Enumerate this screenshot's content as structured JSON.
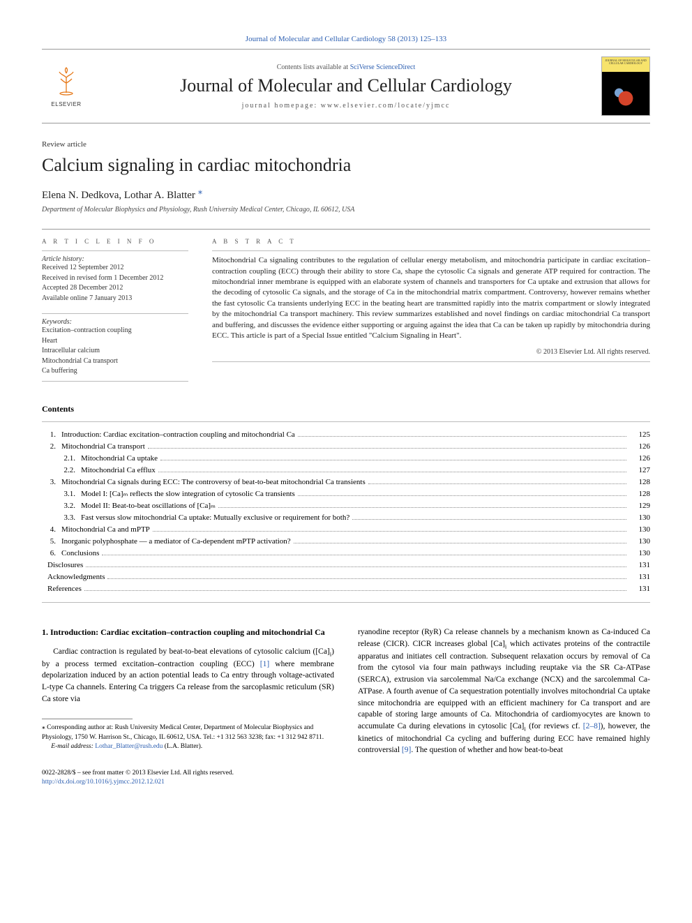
{
  "header": {
    "top_link_text": "Journal of Molecular and Cellular Cardiology 58 (2013) 125–133",
    "contents_prefix": "Contents lists available at ",
    "contents_service": "SciVerse ScienceDirect",
    "journal_name": "Journal of Molecular and Cellular Cardiology",
    "homepage_prefix": "journal homepage: ",
    "homepage_url": "www.elsevier.com/locate/yjmcc",
    "publisher": "ELSEVIER",
    "cover_label": "JOURNAL OF MOLECULAR AND CELLULAR CARDIOLOGY"
  },
  "article": {
    "type": "Review article",
    "title": "Calcium signaling in cardiac mitochondria",
    "authors": "Elena N. Dedkova, Lothar A. Blatter ",
    "corr_mark": "⁎",
    "affiliation": "Department of Molecular Biophysics and Physiology, Rush University Medical Center, Chicago, IL 60612, USA"
  },
  "info": {
    "label": "A R T I C L E   I N F O",
    "history_label": "Article history:",
    "received": "Received 12 September 2012",
    "revised": "Received in revised form 1 December 2012",
    "accepted": "Accepted 28 December 2012",
    "online": "Available online 7 January 2013",
    "keywords_label": "Keywords:",
    "keywords": [
      "Excitation–contraction coupling",
      "Heart",
      "Intracellular calcium",
      "Mitochondrial Ca transport",
      "Ca buffering"
    ]
  },
  "abstract": {
    "label": "A B S T R A C T",
    "text": "Mitochondrial Ca signaling contributes to the regulation of cellular energy metabolism, and mitochondria participate in cardiac excitation–contraction coupling (ECC) through their ability to store Ca, shape the cytosolic Ca signals and generate ATP required for contraction. The mitochondrial inner membrane is equipped with an elaborate system of channels and transporters for Ca uptake and extrusion that allows for the decoding of cytosolic Ca signals, and the storage of Ca in the mitochondrial matrix compartment. Controversy, however remains whether the fast cytosolic Ca transients underlying ECC in the beating heart are transmitted rapidly into the matrix compartment or slowly integrated by the mitochondrial Ca transport machinery. This review summarizes established and novel findings on cardiac mitochondrial Ca transport and buffering, and discusses the evidence either supporting or arguing against the idea that Ca can be taken up rapidly by mitochondria during ECC. This article is part of a Special Issue entitled \"Calcium Signaling in Heart\".",
    "copyright": "© 2013 Elsevier Ltd. All rights reserved."
  },
  "contents": {
    "heading": "Contents",
    "items": [
      {
        "num": "1.",
        "label": "Introduction: Cardiac excitation–contraction coupling and mitochondrial Ca",
        "page": "125",
        "level": 0
      },
      {
        "num": "2.",
        "label": "Mitochondrial Ca transport",
        "page": "126",
        "level": 0
      },
      {
        "num": "2.1.",
        "label": "Mitochondrial Ca uptake",
        "page": "126",
        "level": 1
      },
      {
        "num": "2.2.",
        "label": "Mitochondrial Ca efflux",
        "page": "127",
        "level": 1
      },
      {
        "num": "3.",
        "label": "Mitochondrial Ca signals during ECC: The controversy of beat-to-beat mitochondrial Ca transients",
        "page": "128",
        "level": 0
      },
      {
        "num": "3.1.",
        "label": "Model I: [Ca]ₘ reflects the slow integration of cytosolic Ca transients",
        "page": "128",
        "level": 1
      },
      {
        "num": "3.2.",
        "label": "Model II: Beat-to-beat oscillations of [Ca]ₘ",
        "page": "129",
        "level": 1
      },
      {
        "num": "3.3.",
        "label": "Fast versus slow mitochondrial Ca uptake: Mutually exclusive or requirement for both?",
        "page": "130",
        "level": 1
      },
      {
        "num": "4.",
        "label": "Mitochondrial Ca and mPTP",
        "page": "130",
        "level": 0
      },
      {
        "num": "5.",
        "label": "Inorganic polyphosphate — a mediator of Ca-dependent mPTP activation?",
        "page": "130",
        "level": 0
      },
      {
        "num": "6.",
        "label": "Conclusions",
        "page": "130",
        "level": 0
      },
      {
        "num": "",
        "label": "Disclosures",
        "page": "131",
        "level": 0
      },
      {
        "num": "",
        "label": "Acknowledgments",
        "page": "131",
        "level": 0
      },
      {
        "num": "",
        "label": "References",
        "page": "131",
        "level": 0
      }
    ]
  },
  "body": {
    "heading": "1. Introduction: Cardiac excitation–contraction coupling and mitochondrial Ca",
    "left_p1a": "Cardiac contraction is regulated by beat-to-beat elevations of cytosolic calcium ([Ca]",
    "left_p1_sub1": "i",
    "left_p1b": ") by a process termed excitation–contraction coupling (ECC) ",
    "left_ref1": "[1]",
    "left_p1c": " where membrane depolarization induced by an action potential leads to Ca entry through voltage-activated L-type Ca channels. Entering Ca triggers Ca release from the sarcoplasmic reticulum (SR) Ca store via",
    "right_p1a": "ryanodine receptor (RyR) Ca release channels by a mechanism known as Ca-induced Ca release (CICR). CICR increases global [Ca]",
    "right_sub1": "i",
    "right_p1b": " which activates proteins of the contractile apparatus and initiates cell contraction. Subsequent relaxation occurs by removal of Ca from the cytosol via four main pathways including reuptake via the SR Ca-ATPase (SERCA), extrusion via sarcolemmal Na/Ca exchange (NCX) and the sarcolemmal Ca-ATPase. A fourth avenue of Ca sequestration potentially involves mitochondrial Ca uptake since mitochondria are equipped with an efficient machinery for Ca transport and are capable of storing large amounts of Ca. Mitochondria of cardiomyocytes are known to accumulate Ca during elevations in cytosolic [Ca]",
    "right_sub2": "i",
    "right_p1c": " (for reviews cf. ",
    "right_ref1": "[2–8]",
    "right_p1d": "), however, the kinetics of mitochondrial Ca cycling and buffering during ECC have remained highly controversial ",
    "right_ref2": "[9]",
    "right_p1e": ". The question of whether and how beat-to-beat"
  },
  "footnote": {
    "corr_text": "⁎ Corresponding author at: Rush University Medical Center, Department of Molecular Biophysics and Physiology, 1750 W. Harrison St., Chicago, IL 60612, USA. Tel.: +1 312 563 3238; fax: +1 312 942 8711.",
    "email_label": "E-mail address: ",
    "email": "Lothar_Blatter@rush.edu",
    "email_suffix": " (L.A. Blatter)."
  },
  "footer": {
    "issn_line": "0022-2828/$ – see front matter © 2013 Elsevier Ltd. All rights reserved.",
    "doi": "http://dx.doi.org/10.1016/j.yjmcc.2012.12.021"
  },
  "colors": {
    "link": "#2a5db0",
    "orange": "#e67817",
    "text": "#222222",
    "rule": "#999999"
  }
}
